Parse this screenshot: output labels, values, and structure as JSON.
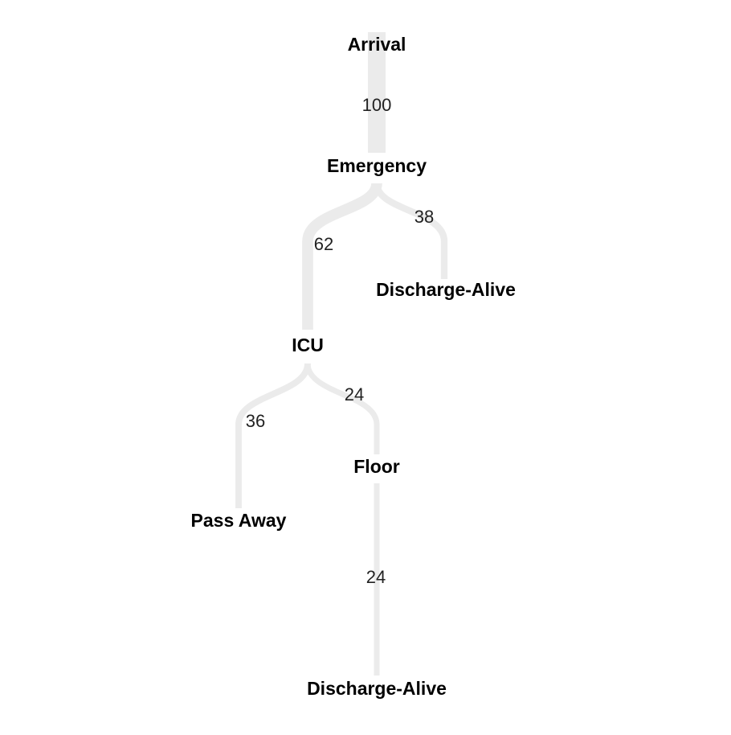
{
  "diagram": {
    "type": "flow-tree",
    "link_color": "#ebebeb",
    "node_text_color": "#000000",
    "value_text_color": "#222222",
    "max_value": 100,
    "nodes": [
      {
        "id": "arrival",
        "label": "Arrival"
      },
      {
        "id": "emergency",
        "label": "Emergency"
      },
      {
        "id": "discharge_alive_1",
        "label": "Discharge-Alive"
      },
      {
        "id": "icu",
        "label": "ICU"
      },
      {
        "id": "floor",
        "label": "Floor"
      },
      {
        "id": "pass_away",
        "label": "Pass Away"
      },
      {
        "id": "discharge_alive_2",
        "label": "Discharge-Alive"
      }
    ],
    "links": [
      {
        "id": "arrival-emergency",
        "source": "arrival",
        "target": "emergency",
        "value": 100,
        "label": "100"
      },
      {
        "id": "emergency-icu",
        "source": "emergency",
        "target": "icu",
        "value": 62,
        "label": "62"
      },
      {
        "id": "emergency-discharge",
        "source": "emergency",
        "target": "discharge_alive_1",
        "value": 38,
        "label": "38"
      },
      {
        "id": "icu-pass-away",
        "source": "icu",
        "target": "pass_away",
        "value": 36,
        "label": "36"
      },
      {
        "id": "icu-floor",
        "source": "icu",
        "target": "floor",
        "value": 24,
        "label": "24"
      },
      {
        "id": "floor-discharge",
        "source": "floor",
        "target": "discharge_alive_2",
        "value": 24,
        "label": "24"
      }
    ]
  }
}
